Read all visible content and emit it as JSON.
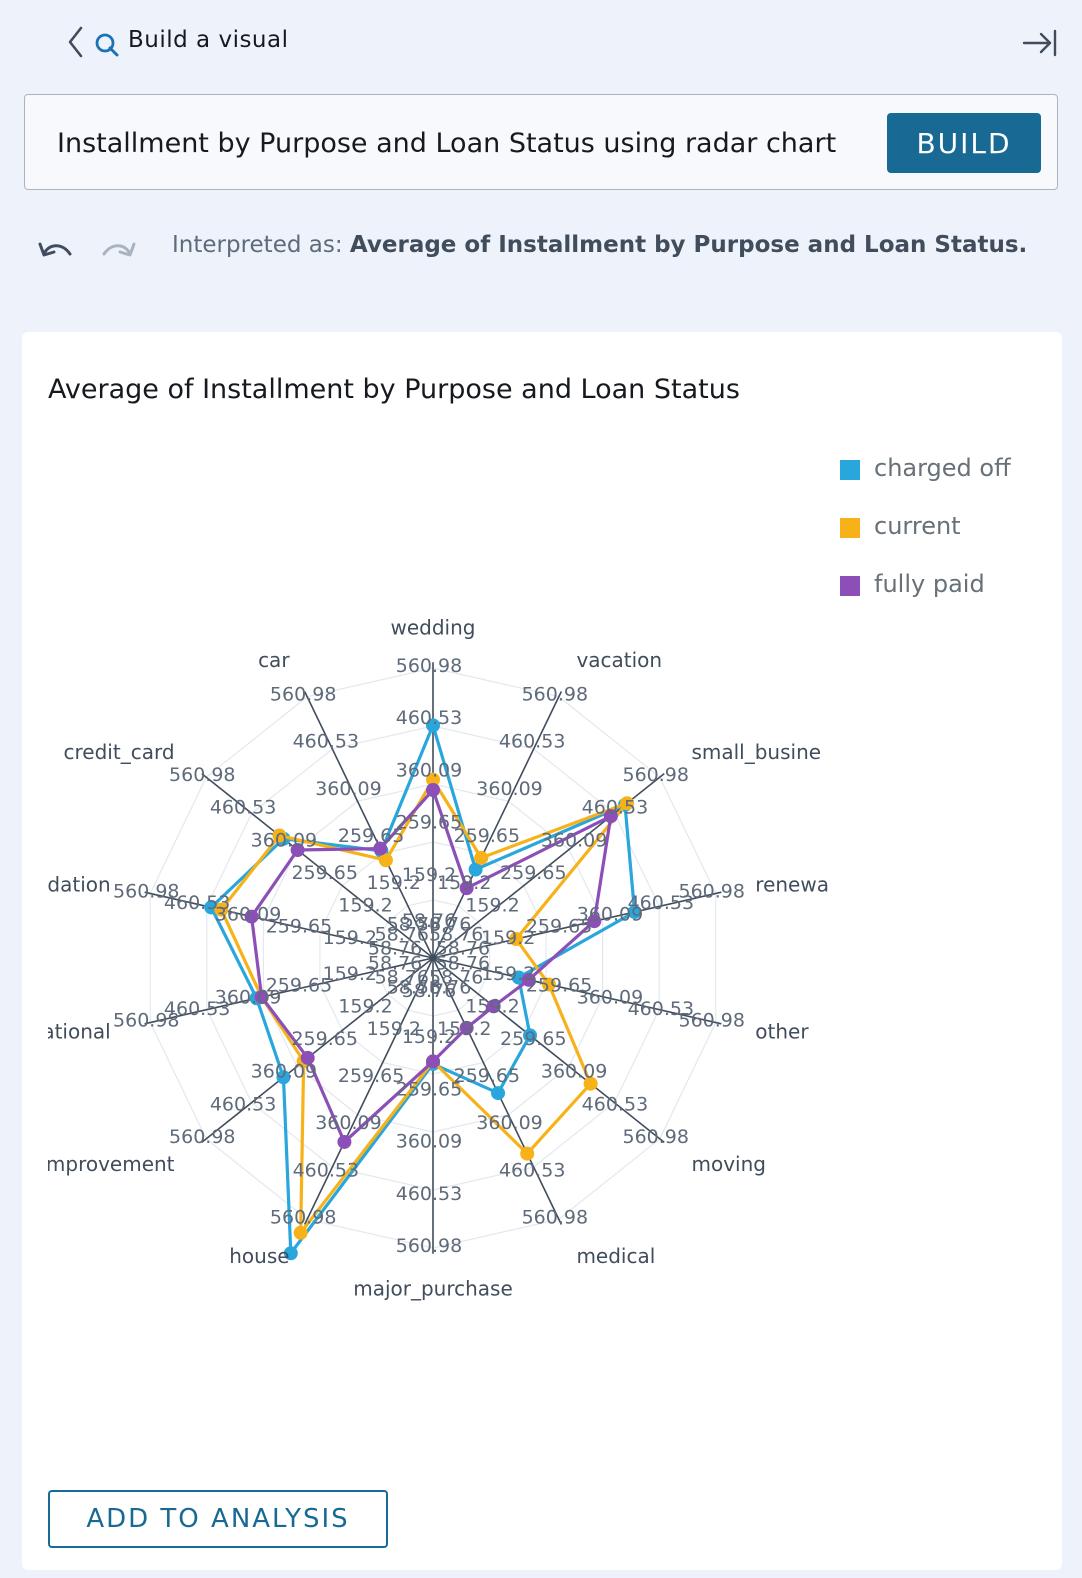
{
  "header": {
    "title": "Build a visual",
    "back_icon": "chevron-left-icon",
    "search_icon": "q-search-icon",
    "collapse_icon": "collapse-panel-icon"
  },
  "query": {
    "text": "Installment by Purpose and Loan Status using radar chart",
    "build_label": "BUILD"
  },
  "interpretation": {
    "prefix": "Interpreted as: ",
    "value": "Average of Installment by Purpose and Loan Status."
  },
  "colors": {
    "accent": "#186a94",
    "charged_off": "#29a7dd",
    "current": "#f7b21a",
    "fully_paid": "#8c4fb8"
  },
  "chart_data": {
    "type": "radar",
    "title": "Average of Installment by Purpose and Loan Status",
    "legend_position": "top-right",
    "categories": [
      "wedding",
      "vacation",
      "small_business",
      "renewable_energy",
      "other",
      "moving",
      "medical",
      "major_purchase",
      "house",
      "home_improvement",
      "educational",
      "debt_consolidation",
      "credit_card",
      "car"
    ],
    "category_labels": [
      "wedding",
      "vacation",
      "small_busine",
      "renewa",
      "other",
      "moving",
      "medical",
      "major_purchase",
      "house",
      "improvement",
      "ational",
      "idation",
      "credit_card",
      "car"
    ],
    "ticks": [
      "58.76",
      "159.2",
      "259.65",
      "360.09",
      "460.53",
      "560.98"
    ],
    "range": [
      0,
      560.98
    ],
    "series": [
      {
        "name": "charged off",
        "values": [
          450,
          190,
          475,
          400,
          170,
          240,
          290,
          205,
          635,
          370,
          350,
          440,
          370,
          230
        ]
      },
      {
        "name": "current",
        "values": [
          345,
          215,
          480,
          165,
          230,
          390,
          420,
          200,
          590,
          320,
          340,
          420,
          380,
          210
        ]
      },
      {
        "name": "fully paid",
        "values": [
          325,
          150,
          440,
          320,
          190,
          150,
          150,
          200,
          395,
          310,
          340,
          360,
          335,
          235
        ]
      }
    ]
  },
  "footer": {
    "add_label": "ADD TO ANALYSIS"
  }
}
